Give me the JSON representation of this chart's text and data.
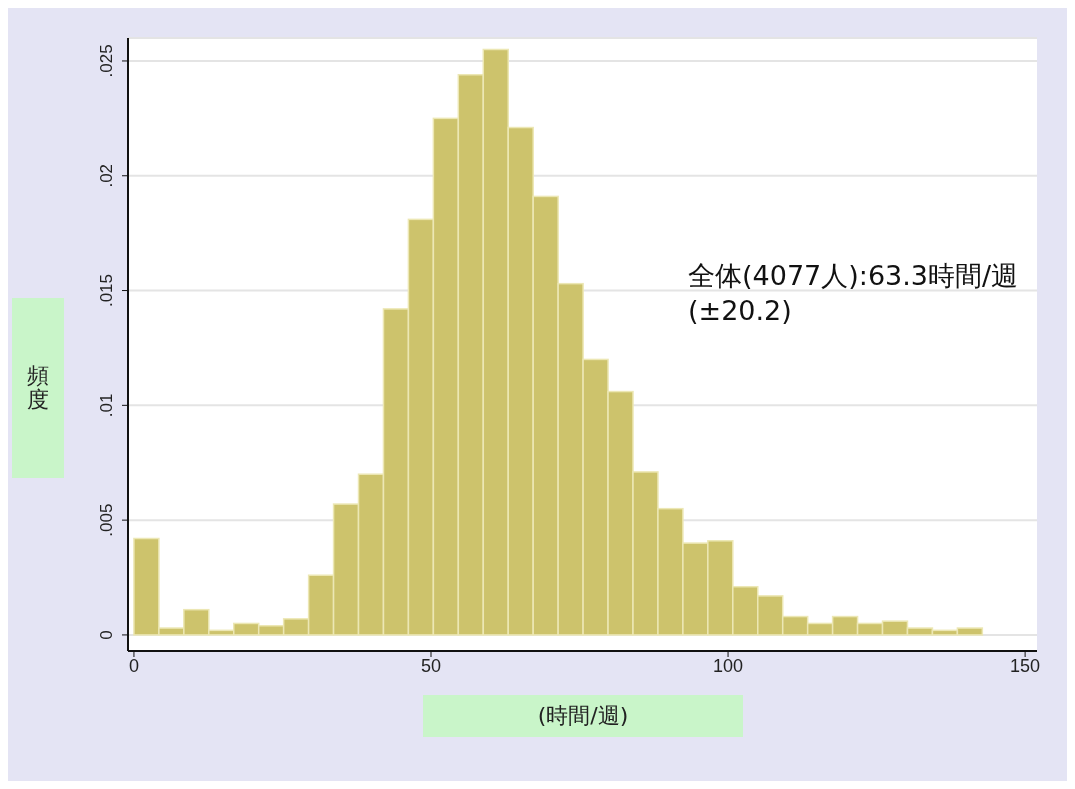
{
  "chart_data": {
    "type": "histogram",
    "xlabel": "(時間/週)",
    "ylabel": "頻度",
    "annotations": [
      "全体(4077人):63.3時間/週(±20.2)"
    ],
    "bins": [
      0,
      4.2,
      8.4,
      12.6,
      16.8,
      21,
      25.2,
      29.4,
      33.6,
      37.8,
      42,
      46.2,
      50.4,
      54.6,
      58.8,
      63,
      67.2,
      71.4,
      75.6,
      79.8,
      84,
      88.2,
      92.4,
      96.6,
      100.8,
      105,
      109.2,
      113.4,
      117.6,
      121.8,
      126,
      130.2,
      134.4,
      138.6,
      142.8
    ],
    "values": [
      0.0042,
      0.0003,
      0.0011,
      0.0002,
      0.0005,
      0.0004,
      0.0007,
      0.0026,
      0.0057,
      0.007,
      0.0142,
      0.0181,
      0.0225,
      0.0244,
      0.0255,
      0.0221,
      0.0191,
      0.0153,
      0.012,
      0.0106,
      0.0071,
      0.0055,
      0.004,
      0.0041,
      0.0021,
      0.0017,
      0.0008,
      0.0005,
      0.0008,
      0.0005,
      0.0006,
      0.0003,
      0.0002,
      0.0003
    ],
    "color": "#cdc36c",
    "xlim": [
      -1,
      152
    ],
    "xticks": [
      0,
      50,
      100,
      150
    ],
    "ylim": [
      -0.0007,
      0.026
    ],
    "yticks": [
      {
        "value": 0,
        "label": "0"
      },
      {
        "value": 0.005,
        "label": ".005"
      },
      {
        "value": 0.01,
        "label": ".01"
      },
      {
        "value": 0.015,
        "label": ".015"
      },
      {
        "value": 0.02,
        "label": ".02"
      },
      {
        "value": 0.025,
        "label": ".025"
      }
    ],
    "grid": "y"
  }
}
